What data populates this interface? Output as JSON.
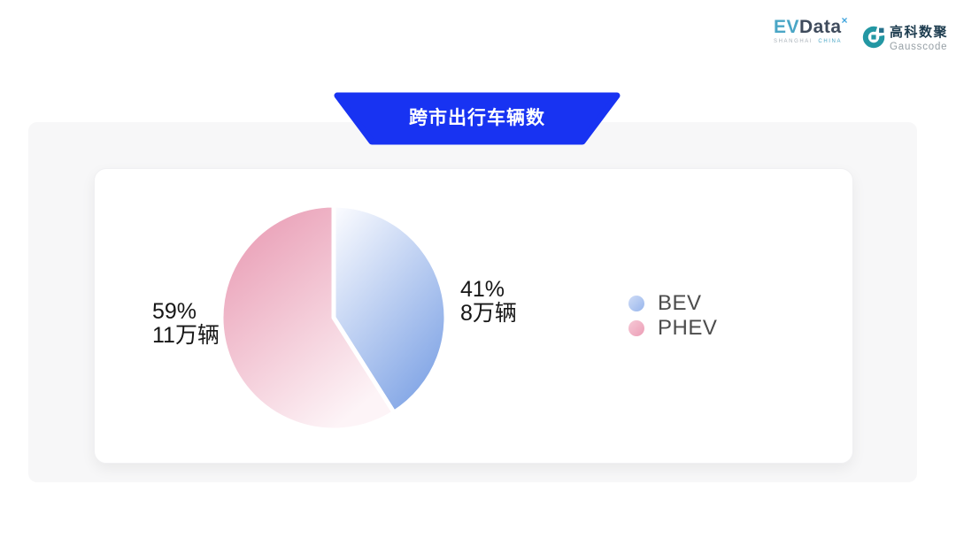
{
  "header": {
    "evdata": {
      "ev": "EV",
      "data": "Data",
      "sup": "×",
      "sub_left": "SHANGHAI",
      "sub_right": "CHINA"
    },
    "gausscode": {
      "cn": "高科数聚",
      "en": "Gausscode",
      "mark_color": "#2397a3",
      "mark_accent": "#26718c"
    }
  },
  "banner": {
    "title": "跨市出行车辆数",
    "color": "#1833f2"
  },
  "chart_data": {
    "type": "pie",
    "title": "跨市出行车辆数",
    "unit": "万辆",
    "start_angle_deg": -90,
    "direction": "clockwise",
    "legend_position": "right",
    "slices": [
      {
        "label": "BEV",
        "percent": 41,
        "value": 8,
        "value_label": "8万辆",
        "gradient_from": "#fdfdff",
        "gradient_to": "#84a7e6"
      },
      {
        "label": "PHEV",
        "percent": 59,
        "value": 11,
        "value_label": "11万辆",
        "gradient_from": "#e794ae",
        "gradient_to": "#fdf4f7"
      }
    ],
    "labels": {
      "right": {
        "line1": "41%",
        "line2": "8万辆"
      },
      "left": {
        "line1": "59%",
        "line2": "11万辆"
      }
    },
    "legend": [
      {
        "label": "BEV",
        "marker_from": "#cfdcf6",
        "marker_to": "#97b5ec"
      },
      {
        "label": "PHEV",
        "marker_from": "#f6c9d6",
        "marker_to": "#ec9db6"
      }
    ]
  }
}
